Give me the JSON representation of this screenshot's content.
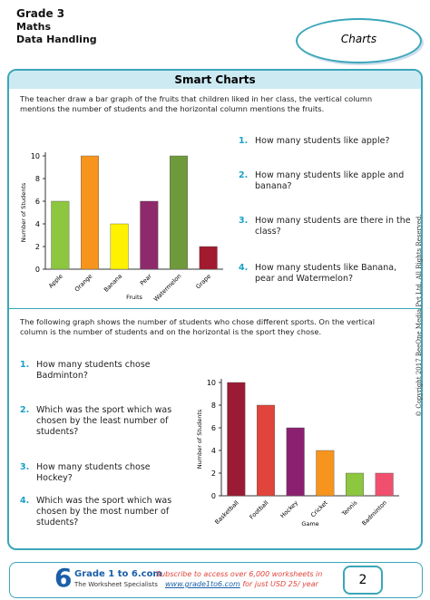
{
  "header": {
    "grade": "Grade 3",
    "subject": "Maths",
    "topic": "Data Handling",
    "badge": "Charts"
  },
  "title": "Smart Charts",
  "section1": {
    "intro": "The teacher draw a bar graph of the fruits that children liked in her class, the vertical column mentions the number of students  and the horizontal column mentions the fruits.",
    "questions": [
      {
        "number": "1.",
        "text": "How many students like apple?"
      },
      {
        "number": "2.",
        "text": "How many students like apple and banana?"
      },
      {
        "number": "3.",
        "text": "How many students are there in the class?"
      },
      {
        "number": "4.",
        "text": "How many students like Banana, pear and Watermelon?"
      }
    ]
  },
  "chart1": {
    "type": "bar",
    "xlabel": "Fruits",
    "ylabel": "Number of Students",
    "categories": [
      "Apple",
      "Orange",
      "Banana",
      "Pear",
      "Watermelon",
      "Grape"
    ],
    "values": [
      6,
      10,
      4,
      6,
      10,
      2
    ],
    "colors": [
      "#8dc63f",
      "#f7941d",
      "#fff200",
      "#8e2a6c",
      "#6f9a3b",
      "#a3192e"
    ],
    "ylim": [
      0,
      10
    ],
    "yticks": [
      0,
      2,
      4,
      6,
      8,
      10
    ]
  },
  "section2": {
    "intro": "The following graph shows the number of students who chose different sports. On the vertical column is the number of students and on the horizontal is the sport they chose.",
    "questions": [
      {
        "number": "1.",
        "text": "How many students chose Badminton?"
      },
      {
        "number": "2.",
        "text": "Which was the sport which was chosen by the least number of students?"
      },
      {
        "number": "3.",
        "text": "How many students chose Hockey?"
      },
      {
        "number": "4.",
        "text": "Which was the sport which was chosen by the most number of students?"
      }
    ]
  },
  "chart2": {
    "type": "bar",
    "xlabel": "Game",
    "ylabel": "Number of Students",
    "categories": [
      "Basketball",
      "Football",
      "Hockey",
      "Cricket",
      "Tennis",
      "Badminton"
    ],
    "values": [
      10,
      8,
      6,
      4,
      2,
      2
    ],
    "colors": [
      "#9c1b34",
      "#e0443b",
      "#8b2070",
      "#f7941d",
      "#8dc63f",
      "#f0506e"
    ],
    "ylim": [
      0,
      10
    ],
    "yticks": [
      0,
      2,
      4,
      6,
      8,
      10
    ]
  },
  "copyright": "© Copyright 2017 BeeOne Media Pvt Ltd. All Rights Reserved.",
  "footer": {
    "logo": "6",
    "brand": "Grade 1 to 6.com",
    "tagline": "The Worksheet Specialists",
    "promo": "Subscribe to access over 6,000 worksheets in",
    "link": "www.grade1to6.com",
    "promo_end": "for just USD 25/ year",
    "page": 2
  }
}
